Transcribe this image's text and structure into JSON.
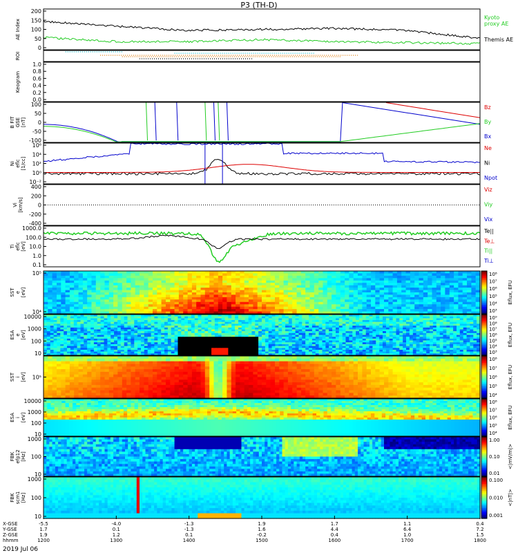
{
  "title": "P3 (TH-D)",
  "date_label": "2019 Jul 06",
  "colors": {
    "ae_kyoto": "#22cc22",
    "ae_themis": "#000000",
    "red": "#dd0000",
    "green": "#22cc22",
    "blue": "#0000cc",
    "black": "#000000",
    "roi_cyan": "#00bbcc",
    "roi_orange": "#dd7700",
    "roi_black": "#000000"
  },
  "panels": [
    {
      "id": "ae",
      "ylabel": [
        "AE Index"
      ],
      "yticks": [
        "200",
        "150",
        "100",
        "50",
        "0"
      ],
      "legend": [
        {
          "text": "Kyoto",
          "color": "#22cc22"
        },
        {
          "text": "proxy AE",
          "color": "#22cc22"
        },
        {
          "text": "Themis AE",
          "color": "#000000"
        }
      ]
    },
    {
      "id": "roi",
      "ylabel": [
        "ROI"
      ],
      "yticks": [],
      "legend": []
    },
    {
      "id": "keogram",
      "ylabel": [
        "Keogram"
      ],
      "yticks": [
        "1.0",
        "0.8",
        "0.6",
        "0.4",
        "0.2",
        "0.0"
      ],
      "legend": []
    },
    {
      "id": "bfit",
      "ylabel": [
        "B FIT",
        "GSE",
        "[nT]"
      ],
      "yticks": [
        "100",
        "50",
        "0",
        "-50",
        "-100"
      ],
      "legend": [
        {
          "text": "Bz",
          "color": "#dd0000"
        },
        {
          "text": "By",
          "color": "#22cc22"
        },
        {
          "text": "Bx",
          "color": "#0000cc"
        }
      ]
    },
    {
      "id": "ni",
      "ylabel": [
        "Ni",
        "eflc",
        "[1/cc]"
      ],
      "yticks": [
        "10⁶",
        "10⁴",
        "10²",
        "10⁰",
        "10⁻²"
      ],
      "legend": [
        {
          "text": "Ne",
          "color": "#dd0000"
        },
        {
          "text": "Ni",
          "color": "#000000"
        },
        {
          "text": "Npot",
          "color": "#0000cc"
        }
      ]
    },
    {
      "id": "vi",
      "ylabel": [
        "Vi",
        "[km/s]"
      ],
      "yticks": [
        "400",
        "200",
        "0",
        "-200",
        "-400"
      ],
      "legend": [
        {
          "text": "Viz",
          "color": "#dd0000"
        },
        {
          "text": "Viy",
          "color": "#22cc22"
        },
        {
          "text": "Vix",
          "color": "#0000cc"
        }
      ]
    },
    {
      "id": "ti",
      "ylabel": [
        "Ti",
        "eflc",
        "[eV]"
      ],
      "yticks": [
        "1000.0",
        "100.0",
        "10.0",
        "1.0",
        "0.1"
      ],
      "legend": [
        {
          "text": "Te||",
          "color": "#000000"
        },
        {
          "text": "Te⊥",
          "color": "#dd0000"
        },
        {
          "text": "Ti||",
          "color": "#22cc22"
        },
        {
          "text": "Ti⊥",
          "color": "#0000cc"
        }
      ]
    },
    {
      "id": "sst_e",
      "ylabel": [
        "SST",
        "e",
        "[eV]"
      ],
      "yticks": [
        "10⁵",
        "10⁴"
      ],
      "legend": []
    },
    {
      "id": "esa_e",
      "ylabel": [
        "ESA",
        "e",
        "[eV]"
      ],
      "yticks": [
        "10000",
        "1000",
        "100",
        "10"
      ],
      "legend": []
    },
    {
      "id": "sst_i",
      "ylabel": [
        "SST",
        "i",
        "[eV]"
      ],
      "yticks": [
        "10⁵"
      ],
      "legend": []
    },
    {
      "id": "esa_i",
      "ylabel": [
        "ESA",
        "i",
        "[eV]"
      ],
      "yticks": [
        "10000",
        "1000",
        "100",
        "10"
      ],
      "legend": []
    },
    {
      "id": "fbk_e",
      "ylabel": [
        "FBK",
        "efp12",
        "[Hz]"
      ],
      "yticks": [
        "1000",
        "100",
        "10"
      ],
      "legend": []
    },
    {
      "id": "fbk_s",
      "ylabel": [
        "FBK",
        "scm1",
        "[Hz]"
      ],
      "yticks": [
        "1000",
        "100",
        "10"
      ],
      "legend": []
    }
  ],
  "colorbars": [
    {
      "label": "Eflux, EFU",
      "ticks": [
        "10⁸",
        "10⁷",
        "10⁶",
        "10⁵",
        "10⁴",
        "10³"
      ]
    },
    {
      "label": "Eflux, EFU",
      "ticks": [
        "10⁹",
        "10⁸",
        "10⁷",
        "10⁶",
        "10⁵",
        "10⁴",
        "10³"
      ]
    },
    {
      "label": "Eflux, EFU",
      "ticks": [
        "10⁸",
        "10⁷",
        "10⁶",
        "10⁵",
        "10⁴"
      ]
    },
    {
      "label": "Eflux, EFU",
      "ticks": [
        "10⁸",
        "10⁷",
        "10⁶",
        "10⁵",
        "10⁴"
      ]
    },
    {
      "label": "<|mV/m|>",
      "ticks": [
        "1.00",
        "0.10",
        "0.01"
      ]
    },
    {
      "label": "<|nT|>",
      "ticks": [
        "0.100",
        "0.010",
        "0.001"
      ]
    }
  ],
  "xaxis": {
    "row_labels": [
      "X-GSE",
      "Y-GSE",
      "Z-GSE",
      "hhmm"
    ],
    "columns": [
      {
        "v": [
          "-5.5",
          "1.7",
          "1.9",
          "1200"
        ]
      },
      {
        "v": [
          "-4.0",
          "0.1",
          "1.2",
          "1300"
        ]
      },
      {
        "v": [
          "-1.3",
          "-1.3",
          "0.1",
          "1400"
        ]
      },
      {
        "v": [
          "1.9",
          "1.6",
          "-0.2",
          "1500"
        ]
      },
      {
        "v": [
          "1.7",
          "4.4",
          "0.4",
          "1600"
        ]
      },
      {
        "v": [
          "1.1",
          "6.4",
          "1.0",
          "1700"
        ]
      },
      {
        "v": [
          "0.4",
          "7.2",
          "1.5",
          "1800"
        ]
      }
    ]
  },
  "chart_data": {
    "type": "line",
    "title": "P3 (TH-D)",
    "x_hhmm": [
      1200,
      1300,
      1400,
      1500,
      1600,
      1700,
      1800
    ],
    "ae_index": {
      "ylim": [
        0,
        200
      ],
      "series": [
        {
          "name": "Themis AE",
          "values": [
            140,
            115,
            95,
            100,
            105,
            95,
            55
          ]
        },
        {
          "name": "Kyoto proxy AE",
          "values": [
            60,
            40,
            40,
            50,
            40,
            35,
            30
          ]
        }
      ]
    },
    "b_fit": {
      "ylim": [
        -100,
        100
      ]
    },
    "ni": {
      "ylim": [
        "10⁻²",
        "10⁶"
      ]
    },
    "vi": {
      "ylim": [
        -400,
        400
      ]
    },
    "ti": {
      "ylim": [
        0.1,
        1000.0
      ]
    }
  }
}
